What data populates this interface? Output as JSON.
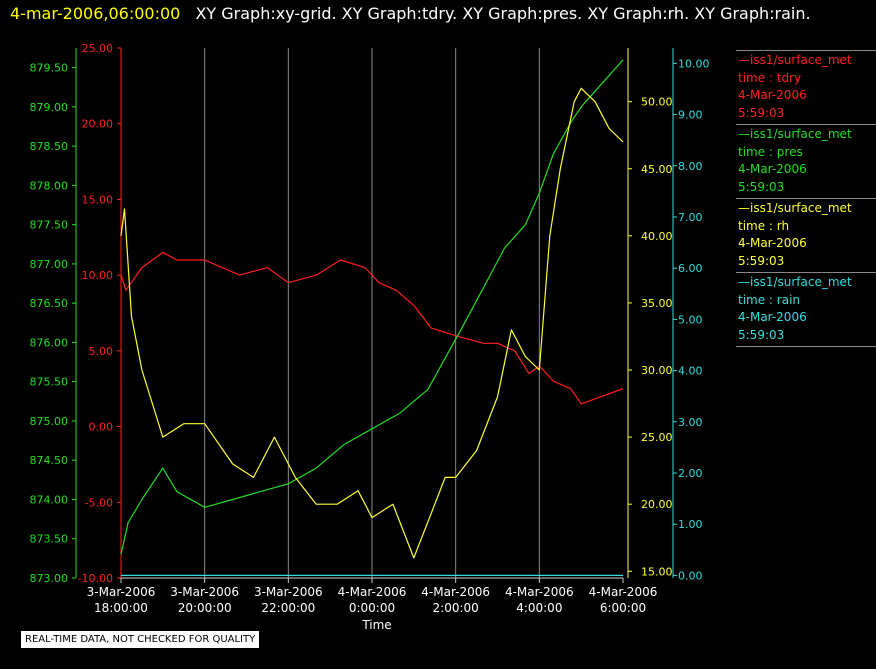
{
  "header": {
    "timestamp": "4-mar-2006,06:00:00",
    "title": "XY Graph:xy-grid.  XY Graph:tdry.  XY Graph:pres.  XY Graph:rh.  XY Graph:rain."
  },
  "note": "REAL-TIME DATA, NOT CHECKED FOR QUALITY",
  "legend": [
    {
      "line1": "iss1/surface_met",
      "line2": "time : tdry",
      "line3": "4-Mar-2006",
      "line4": "5:59:03",
      "color": "#ff2020"
    },
    {
      "line1": "iss1/surface_met",
      "line2": "time : pres",
      "line3": "4-Mar-2006",
      "line4": "5:59:03",
      "color": "#22dd22"
    },
    {
      "line1": "iss1/surface_met",
      "line2": "time : rh",
      "line3": "4-Mar-2006",
      "line4": "5:59:03",
      "color": "#ffff33"
    },
    {
      "line1": "iss1/surface_met",
      "line2": "time : rain",
      "line3": "4-Mar-2006",
      "line4": "5:59:03",
      "color": "#33dddd"
    }
  ],
  "chart_data": {
    "type": "line",
    "xlabel": "Time",
    "x_ticks": [
      {
        "d": "3-Mar-2006",
        "t": "18:00:00"
      },
      {
        "d": "3-Mar-2006",
        "t": "20:00:00"
      },
      {
        "d": "3-Mar-2006",
        "t": "22:00:00"
      },
      {
        "d": "4-Mar-2006",
        "t": "0:00:00"
      },
      {
        "d": "4-Mar-2006",
        "t": "2:00:00"
      },
      {
        "d": "4-Mar-2006",
        "t": "4:00:00"
      },
      {
        "d": "4-Mar-2006",
        "t": "6:00:00"
      }
    ],
    "xlim": [
      "3-Mar-2006 18:00:00",
      "4-Mar-2006 6:00:00"
    ],
    "grid": "vertical",
    "axes": {
      "tdry": {
        "color": "#ff2020",
        "ylim": [
          -10,
          25
        ],
        "ticks": [
          "-10.00",
          "-5.00",
          "0.00",
          "5.00",
          "10.00",
          "15.00",
          "20.00",
          "25.00"
        ]
      },
      "pres": {
        "color": "#22dd22",
        "ylim": [
          873,
          879.75
        ],
        "ticks": [
          "873.00",
          "873.50",
          "874.00",
          "874.50",
          "875.00",
          "875.50",
          "876.00",
          "876.50",
          "877.00",
          "877.50",
          "878.00",
          "878.50",
          "879.00",
          "879.50"
        ]
      },
      "rh": {
        "color": "#ffff33",
        "ylim": [
          14.5,
          54
        ],
        "ticks": [
          "15.00",
          "20.00",
          "25.00",
          "30.00",
          "35.00",
          "40.00",
          "45.00",
          "50.00"
        ]
      },
      "rain": {
        "color": "#33dddd",
        "ylim": [
          -0.05,
          10.3
        ],
        "ticks": [
          "0.00",
          "1.00",
          "2.00",
          "3.00",
          "4.00",
          "5.00",
          "6.00",
          "7.00",
          "8.00",
          "9.00",
          "10.00"
        ]
      }
    },
    "series": [
      {
        "name": "tdry",
        "axis": "tdry",
        "x": [
          "3-Mar-2006 18:00",
          "3-Mar-2006 18:07",
          "3-Mar-2006 18:30",
          "3-Mar-2006 19:00",
          "3-Mar-2006 19:20",
          "3-Mar-2006 20:00",
          "3-Mar-2006 20:50",
          "3-Mar-2006 21:30",
          "3-Mar-2006 22:00",
          "3-Mar-2006 22:40",
          "3-Mar-2006 23:15",
          "3-Mar-2006 23:50",
          "4-Mar-2006 00:10",
          "4-Mar-2006 00:35",
          "4-Mar-2006 01:00",
          "4-Mar-2006 01:25",
          "4-Mar-2006 02:00",
          "4-Mar-2006 02:40",
          "4-Mar-2006 03:00",
          "4-Mar-2006 03:25",
          "4-Mar-2006 03:45",
          "4-Mar-2006 04:00",
          "4-Mar-2006 04:20",
          "4-Mar-2006 04:45",
          "4-Mar-2006 05:00",
          "4-Mar-2006 05:30",
          "4-Mar-2006 06:00"
        ],
        "y": [
          10.0,
          9.0,
          10.5,
          11.5,
          11.0,
          11.0,
          10.0,
          10.5,
          9.5,
          10.0,
          11.0,
          10.5,
          9.5,
          9.0,
          8.0,
          6.5,
          6.0,
          5.5,
          5.5,
          5.0,
          3.5,
          4.0,
          3.0,
          2.5,
          1.5,
          2.0,
          2.5
        ]
      },
      {
        "name": "pres",
        "axis": "pres",
        "x": [
          "3-Mar-2006 18:00",
          "3-Mar-2006 18:10",
          "3-Mar-2006 18:30",
          "3-Mar-2006 19:00",
          "3-Mar-2006 19:20",
          "3-Mar-2006 20:00",
          "3-Mar-2006 20:40",
          "3-Mar-2006 21:20",
          "3-Mar-2006 22:00",
          "3-Mar-2006 22:40",
          "3-Mar-2006 23:20",
          "4-Mar-2006 00:00",
          "4-Mar-2006 00:40",
          "4-Mar-2006 01:20",
          "4-Mar-2006 01:45",
          "4-Mar-2006 02:10",
          "4-Mar-2006 02:40",
          "4-Mar-2006 03:10",
          "4-Mar-2006 03:40",
          "4-Mar-2006 04:00",
          "4-Mar-2006 04:20",
          "4-Mar-2006 04:45",
          "4-Mar-2006 05:00",
          "4-Mar-2006 05:20",
          "4-Mar-2006 05:40",
          "4-Mar-2006 06:00"
        ],
        "y": [
          873.3,
          873.7,
          874.0,
          874.4,
          874.1,
          873.9,
          874.0,
          874.1,
          874.2,
          874.4,
          874.7,
          874.9,
          875.1,
          875.4,
          875.8,
          876.2,
          876.7,
          877.2,
          877.5,
          877.9,
          878.4,
          878.8,
          879.0,
          879.2,
          879.4,
          879.6
        ]
      },
      {
        "name": "rh",
        "axis": "rh",
        "x": [
          "3-Mar-2006 18:00",
          "3-Mar-2006 18:05",
          "3-Mar-2006 18:15",
          "3-Mar-2006 18:30",
          "3-Mar-2006 19:00",
          "3-Mar-2006 19:30",
          "3-Mar-2006 20:00",
          "3-Mar-2006 20:40",
          "3-Mar-2006 21:10",
          "3-Mar-2006 21:40",
          "3-Mar-2006 22:10",
          "3-Mar-2006 22:40",
          "3-Mar-2006 23:10",
          "3-Mar-2006 23:40",
          "4-Mar-2006 00:00",
          "4-Mar-2006 00:30",
          "4-Mar-2006 01:00",
          "4-Mar-2006 01:30",
          "4-Mar-2006 01:45",
          "4-Mar-2006 02:00",
          "4-Mar-2006 02:30",
          "4-Mar-2006 03:00",
          "4-Mar-2006 03:20",
          "4-Mar-2006 03:40",
          "4-Mar-2006 04:00",
          "4-Mar-2006 04:15",
          "4-Mar-2006 04:30",
          "4-Mar-2006 04:50",
          "4-Mar-2006 05:00",
          "4-Mar-2006 05:20",
          "4-Mar-2006 05:40",
          "4-Mar-2006 06:00"
        ],
        "y": [
          40.0,
          42.0,
          34.0,
          30.0,
          25.0,
          26.0,
          26.0,
          23.0,
          22.0,
          25.0,
          22.0,
          20.0,
          20.0,
          21.0,
          19.0,
          20.0,
          16.0,
          20.0,
          22.0,
          22.0,
          24.0,
          28.0,
          33.0,
          31.0,
          30.0,
          40.0,
          45.0,
          50.0,
          51.0,
          50.0,
          48.0,
          47.0
        ]
      },
      {
        "name": "rain",
        "axis": "rain",
        "x": [
          "3-Mar-2006 18:00",
          "4-Mar-2006 06:00"
        ],
        "y": [
          0.0,
          0.0
        ]
      }
    ]
  }
}
